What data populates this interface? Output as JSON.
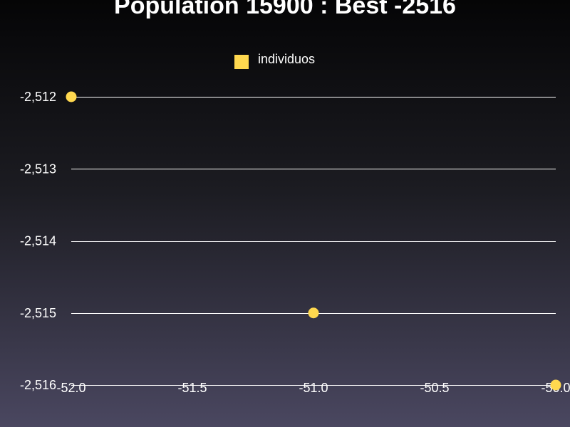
{
  "chart_data": {
    "type": "scatter",
    "title": "Population 15900 : Best -2516",
    "xlabel": "",
    "ylabel": "",
    "xlim": [
      -52.0,
      -50.0
    ],
    "ylim": [
      -2516,
      -2512
    ],
    "x_ticks": [
      -52.0,
      -51.5,
      -51.0,
      -50.5,
      -50.0
    ],
    "x_tick_labels": [
      "-52.0",
      "-51.5",
      "-51.0",
      "-50.5",
      "-50.0"
    ],
    "y_ticks": [
      -2512,
      -2513,
      -2514,
      -2515,
      -2516
    ],
    "y_tick_labels": [
      "-2,512",
      "-2,513",
      "-2,514",
      "-2,515",
      "-2,516"
    ],
    "grid": "horizontal",
    "legend_position": "top",
    "series": [
      {
        "name": "individuos",
        "color": "#ffd84f",
        "x": [
          -52.0,
          -51.0,
          -50.0
        ],
        "y": [
          -2512,
          -2515,
          -2516
        ]
      }
    ]
  }
}
